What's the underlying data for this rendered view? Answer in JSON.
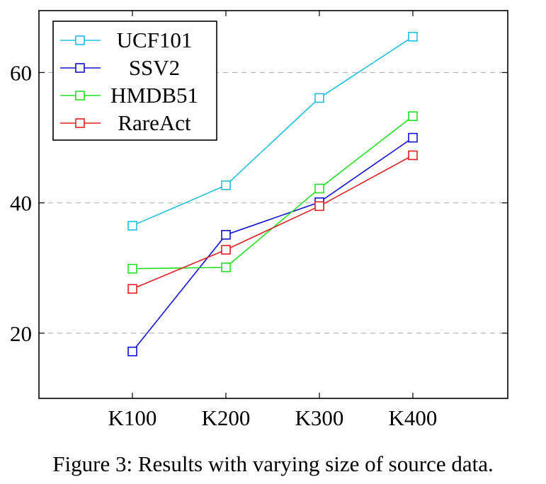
{
  "chart_data": {
    "type": "line",
    "categories": [
      "K100",
      "K200",
      "K300",
      "K400"
    ],
    "series": [
      {
        "name": "UCF101",
        "color": "#1fbfe0",
        "values": [
          36.5,
          42.7,
          56.1,
          65.5
        ]
      },
      {
        "name": "SSV2",
        "color": "#1010d0",
        "values": [
          17.2,
          35.1,
          40.1,
          50.0
        ]
      },
      {
        "name": "HMDB51",
        "color": "#22e022",
        "values": [
          29.9,
          30.1,
          42.2,
          53.3
        ]
      },
      {
        "name": "RareAct",
        "color": "#e02020",
        "values": [
          26.8,
          32.8,
          39.5,
          47.3
        ]
      }
    ],
    "yticks": [
      20,
      40,
      60
    ],
    "ylim": [
      10,
      69.5
    ],
    "grid": "horizontal-dashed",
    "legend_position": "top-left",
    "marker": "square",
    "xlabel": "",
    "ylabel": "",
    "title": ""
  },
  "caption": "Figure 3: Results with varying size of source data."
}
